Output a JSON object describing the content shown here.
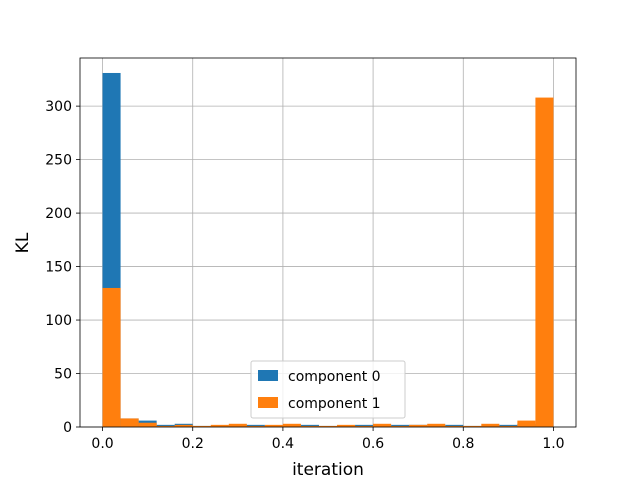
{
  "chart_data": {
    "type": "bar",
    "xlabel": "iteration",
    "ylabel": "KL",
    "xlim": [
      -0.05,
      1.05
    ],
    "ylim": [
      0,
      345
    ],
    "grid": true,
    "legend_position": "lower-center",
    "bin_edges": [
      0.0,
      0.04,
      0.08,
      0.12,
      0.16,
      0.2,
      0.24,
      0.28,
      0.32,
      0.36,
      0.4,
      0.44,
      0.48,
      0.52,
      0.56,
      0.6,
      0.64,
      0.68,
      0.72,
      0.76,
      0.8,
      0.84,
      0.88,
      0.92,
      0.96,
      1.0
    ],
    "x_ticks": [
      0.0,
      0.2,
      0.4,
      0.6,
      0.8,
      1.0
    ],
    "x_tick_labels": [
      "0.0",
      "0.2",
      "0.4",
      "0.6",
      "0.8",
      "1.0"
    ],
    "y_ticks": [
      0,
      50,
      100,
      150,
      200,
      250,
      300
    ],
    "y_tick_labels": [
      "0",
      "50",
      "100",
      "150",
      "200",
      "250",
      "300"
    ],
    "series": [
      {
        "name": "component 0",
        "color": "#1f77b4",
        "values": [
          331,
          8,
          6,
          2,
          3,
          1,
          1,
          2,
          2,
          1,
          2,
          2,
          1,
          1,
          2,
          2,
          2,
          2,
          1,
          2,
          1,
          1,
          2,
          3,
          2
        ]
      },
      {
        "name": "component 1",
        "color": "#ff7f0e",
        "values": [
          130,
          8,
          4,
          1,
          2,
          1,
          2,
          3,
          1,
          2,
          3,
          1,
          1,
          2,
          1,
          3,
          1,
          2,
          3,
          1,
          1,
          3,
          1,
          6,
          308
        ]
      }
    ]
  }
}
